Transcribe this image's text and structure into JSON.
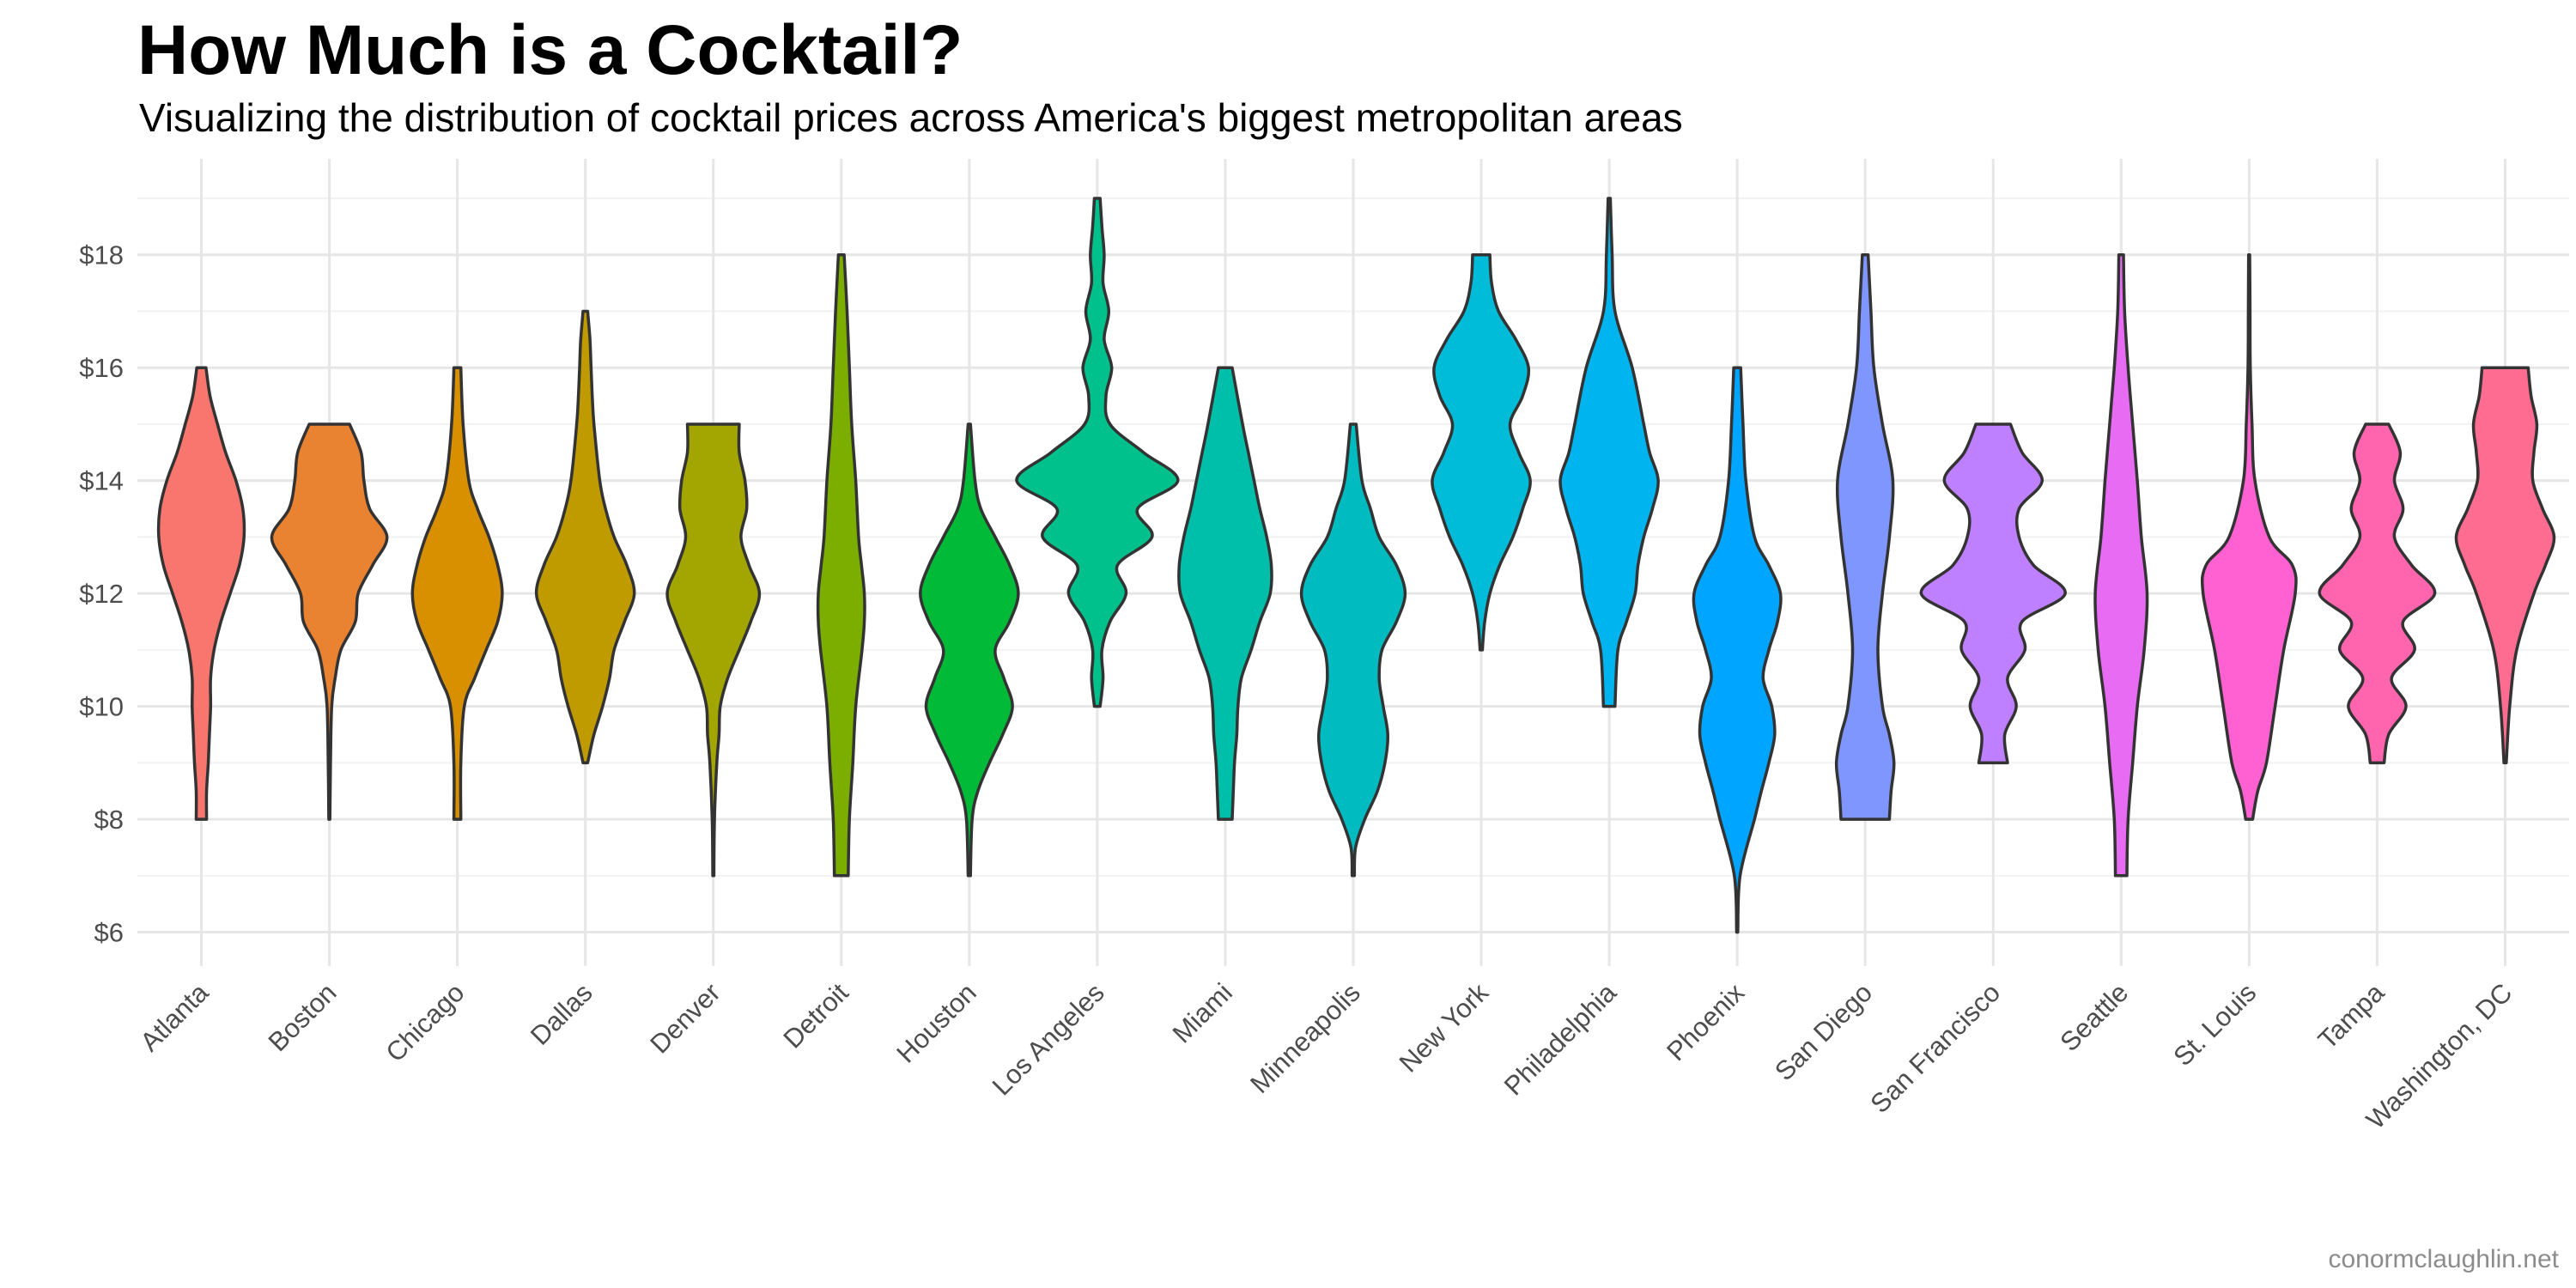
{
  "chart_data": {
    "type": "violin",
    "title": "How Much is a Cocktail?",
    "subtitle": "Visualizing the distribution of cocktail prices across America's biggest metropolitan areas",
    "caption": "conormclaughlin.net",
    "xlabel": "",
    "ylabel": "",
    "ylim": [
      5.4,
      19.7
    ],
    "y_ticks": [
      6,
      8,
      10,
      12,
      14,
      16,
      18
    ],
    "y_tick_labels": [
      "$6",
      "$8",
      "$10",
      "$12",
      "$14",
      "$16",
      "$18"
    ],
    "grid": true,
    "legend": "none",
    "categories": [
      "Atlanta",
      "Boston",
      "Chicago",
      "Dallas",
      "Denver",
      "Detroit",
      "Houston",
      "Los Angeles",
      "Miami",
      "Minneapolis",
      "New York",
      "Philadelphia",
      "Phoenix",
      "San Diego",
      "San Francisco",
      "Seattle",
      "St. Louis",
      "Tampa",
      "Washington, DC"
    ],
    "colors": [
      "#F8766D",
      "#EA8331",
      "#D89000",
      "#C09B00",
      "#A3A500",
      "#7CAE00",
      "#00BA38",
      "#00C08B",
      "#00BFAA",
      "#00BCC1",
      "#00BCD8",
      "#00B4EF",
      "#00A5FF",
      "#7F96FF",
      "#BF80FF",
      "#E76BF3",
      "#FF61D2",
      "#FF65AE",
      "#FF6C91"
    ],
    "series": [
      {
        "name": "Atlanta",
        "min": 8,
        "max": 16,
        "profile": [
          [
            8,
            0.09
          ],
          [
            8.5,
            0.09
          ],
          [
            9,
            0.12
          ],
          [
            9.5,
            0.14
          ],
          [
            10,
            0.16
          ],
          [
            10.5,
            0.16
          ],
          [
            11,
            0.22
          ],
          [
            11.5,
            0.34
          ],
          [
            12,
            0.5
          ],
          [
            12.5,
            0.66
          ],
          [
            13,
            0.74
          ],
          [
            13.5,
            0.72
          ],
          [
            14,
            0.6
          ],
          [
            14.5,
            0.42
          ],
          [
            15,
            0.28
          ],
          [
            15.5,
            0.15
          ],
          [
            16,
            0.08
          ]
        ]
      },
      {
        "name": "Boston",
        "min": 8,
        "max": 15,
        "profile": [
          [
            8,
            0.01
          ],
          [
            9,
            0.02
          ],
          [
            10,
            0.04
          ],
          [
            10.5,
            0.1
          ],
          [
            11,
            0.2
          ],
          [
            11.5,
            0.45
          ],
          [
            12,
            0.5
          ],
          [
            12.5,
            0.75
          ],
          [
            13,
            1.0
          ],
          [
            13.5,
            0.7
          ],
          [
            14,
            0.6
          ],
          [
            14.5,
            0.55
          ],
          [
            15,
            0.35
          ]
        ]
      },
      {
        "name": "Chicago",
        "min": 8,
        "max": 16,
        "profile": [
          [
            8,
            0.06
          ],
          [
            9,
            0.06
          ],
          [
            10,
            0.12
          ],
          [
            10.5,
            0.3
          ],
          [
            11,
            0.5
          ],
          [
            11.5,
            0.7
          ],
          [
            12,
            0.78
          ],
          [
            12.5,
            0.7
          ],
          [
            13,
            0.55
          ],
          [
            13.5,
            0.35
          ],
          [
            14,
            0.2
          ],
          [
            15,
            0.1
          ],
          [
            16,
            0.06
          ]
        ]
      },
      {
        "name": "Dallas",
        "min": 9,
        "max": 17,
        "profile": [
          [
            9,
            0.04
          ],
          [
            9.5,
            0.15
          ],
          [
            10,
            0.3
          ],
          [
            10.5,
            0.42
          ],
          [
            11,
            0.5
          ],
          [
            11.5,
            0.68
          ],
          [
            12,
            0.85
          ],
          [
            12.5,
            0.72
          ],
          [
            13,
            0.5
          ],
          [
            13.5,
            0.35
          ],
          [
            14,
            0.25
          ],
          [
            15,
            0.15
          ],
          [
            15.5,
            0.12
          ],
          [
            16,
            0.1
          ],
          [
            16.5,
            0.08
          ],
          [
            17,
            0.04
          ]
        ]
      },
      {
        "name": "Denver",
        "min": 7,
        "max": 15,
        "profile": [
          [
            7,
            0.01
          ],
          [
            8,
            0.02
          ],
          [
            9,
            0.06
          ],
          [
            9.5,
            0.1
          ],
          [
            10,
            0.12
          ],
          [
            10.5,
            0.25
          ],
          [
            11,
            0.45
          ],
          [
            11.5,
            0.65
          ],
          [
            12,
            0.8
          ],
          [
            12.5,
            0.62
          ],
          [
            13,
            0.48
          ],
          [
            13.5,
            0.58
          ],
          [
            14,
            0.55
          ],
          [
            14.5,
            0.45
          ],
          [
            15,
            0.45
          ]
        ]
      },
      {
        "name": "Detroit",
        "min": 7,
        "max": 18,
        "profile": [
          [
            7,
            0.12
          ],
          [
            8,
            0.14
          ],
          [
            9,
            0.2
          ],
          [
            10,
            0.25
          ],
          [
            11,
            0.36
          ],
          [
            11.5,
            0.4
          ],
          [
            12,
            0.4
          ],
          [
            12.5,
            0.35
          ],
          [
            13,
            0.3
          ],
          [
            14,
            0.25
          ],
          [
            15,
            0.18
          ],
          [
            16,
            0.14
          ],
          [
            17,
            0.1
          ],
          [
            18,
            0.05
          ]
        ]
      },
      {
        "name": "Houston",
        "min": 7,
        "max": 15,
        "profile": [
          [
            7,
            0.02
          ],
          [
            8,
            0.05
          ],
          [
            8.5,
            0.15
          ],
          [
            9,
            0.35
          ],
          [
            9.5,
            0.58
          ],
          [
            10,
            0.75
          ],
          [
            10.5,
            0.6
          ],
          [
            11,
            0.45
          ],
          [
            11.5,
            0.7
          ],
          [
            12,
            0.85
          ],
          [
            12.5,
            0.7
          ],
          [
            13,
            0.45
          ],
          [
            13.5,
            0.2
          ],
          [
            14,
            0.1
          ],
          [
            15,
            0.02
          ]
        ]
      },
      {
        "name": "Los Angeles",
        "min": 10,
        "max": 19,
        "profile": [
          [
            10,
            0.05
          ],
          [
            10.5,
            0.1
          ],
          [
            11,
            0.08
          ],
          [
            11.5,
            0.22
          ],
          [
            12,
            0.5
          ],
          [
            12.5,
            0.35
          ],
          [
            13,
            0.95
          ],
          [
            13.5,
            0.7
          ],
          [
            14,
            1.4
          ],
          [
            14.5,
            0.8
          ],
          [
            15,
            0.22
          ],
          [
            15.5,
            0.15
          ],
          [
            16,
            0.25
          ],
          [
            16.5,
            0.12
          ],
          [
            17,
            0.2
          ],
          [
            17.5,
            0.1
          ],
          [
            18,
            0.12
          ],
          [
            18.5,
            0.08
          ],
          [
            19,
            0.05
          ]
        ]
      },
      {
        "name": "Miami",
        "min": 8,
        "max": 16,
        "profile": [
          [
            8,
            0.12
          ],
          [
            8.5,
            0.14
          ],
          [
            9,
            0.16
          ],
          [
            9.5,
            0.2
          ],
          [
            10,
            0.22
          ],
          [
            10.5,
            0.28
          ],
          [
            11,
            0.45
          ],
          [
            11.5,
            0.6
          ],
          [
            12,
            0.78
          ],
          [
            12.5,
            0.8
          ],
          [
            13,
            0.72
          ],
          [
            13.5,
            0.6
          ],
          [
            14,
            0.5
          ],
          [
            14.5,
            0.4
          ],
          [
            15,
            0.3
          ],
          [
            16,
            0.12
          ]
        ]
      },
      {
        "name": "Minneapolis",
        "min": 7,
        "max": 15,
        "profile": [
          [
            7,
            0.02
          ],
          [
            7.5,
            0.04
          ],
          [
            8,
            0.2
          ],
          [
            8.5,
            0.42
          ],
          [
            9,
            0.55
          ],
          [
            9.5,
            0.6
          ],
          [
            10,
            0.52
          ],
          [
            10.5,
            0.45
          ],
          [
            11,
            0.5
          ],
          [
            11.5,
            0.75
          ],
          [
            12,
            0.9
          ],
          [
            12.5,
            0.75
          ],
          [
            13,
            0.45
          ],
          [
            13.5,
            0.3
          ],
          [
            14,
            0.15
          ],
          [
            15,
            0.05
          ]
        ]
      },
      {
        "name": "New York",
        "min": 11,
        "max": 18,
        "profile": [
          [
            11,
            0.02
          ],
          [
            11.5,
            0.06
          ],
          [
            12,
            0.15
          ],
          [
            12.5,
            0.32
          ],
          [
            13,
            0.55
          ],
          [
            13.5,
            0.72
          ],
          [
            14,
            0.85
          ],
          [
            14.5,
            0.65
          ],
          [
            15,
            0.5
          ],
          [
            15.5,
            0.72
          ],
          [
            16,
            0.82
          ],
          [
            16.5,
            0.6
          ],
          [
            17,
            0.3
          ],
          [
            17.5,
            0.18
          ],
          [
            18,
            0.15
          ]
        ]
      },
      {
        "name": "Philadelphia",
        "min": 10,
        "max": 19,
        "profile": [
          [
            10,
            0.1
          ],
          [
            11,
            0.15
          ],
          [
            11.5,
            0.3
          ],
          [
            12,
            0.45
          ],
          [
            12.5,
            0.5
          ],
          [
            13,
            0.6
          ],
          [
            13.5,
            0.75
          ],
          [
            14,
            0.85
          ],
          [
            14.5,
            0.7
          ],
          [
            15,
            0.6
          ],
          [
            16,
            0.4
          ],
          [
            17,
            0.1
          ],
          [
            18,
            0.05
          ],
          [
            19,
            0.02
          ]
        ]
      },
      {
        "name": "Phoenix",
        "min": 6,
        "max": 16,
        "profile": [
          [
            6,
            0.01
          ],
          [
            7,
            0.05
          ],
          [
            8,
            0.3
          ],
          [
            8.5,
            0.42
          ],
          [
            9,
            0.55
          ],
          [
            9.5,
            0.65
          ],
          [
            10,
            0.6
          ],
          [
            10.5,
            0.45
          ],
          [
            11,
            0.55
          ],
          [
            11.5,
            0.7
          ],
          [
            12,
            0.75
          ],
          [
            12.5,
            0.55
          ],
          [
            13,
            0.3
          ],
          [
            14,
            0.15
          ],
          [
            15,
            0.1
          ],
          [
            16,
            0.06
          ]
        ]
      },
      {
        "name": "San Diego",
        "min": 8,
        "max": 18,
        "profile": [
          [
            8,
            0.42
          ],
          [
            8.5,
            0.45
          ],
          [
            9,
            0.5
          ],
          [
            9.5,
            0.42
          ],
          [
            10,
            0.3
          ],
          [
            11,
            0.22
          ],
          [
            12,
            0.3
          ],
          [
            13,
            0.42
          ],
          [
            14,
            0.48
          ],
          [
            15,
            0.3
          ],
          [
            16,
            0.15
          ],
          [
            17,
            0.1
          ],
          [
            18,
            0.05
          ]
        ]
      },
      {
        "name": "San Francisco",
        "min": 9,
        "max": 15,
        "profile": [
          [
            9,
            0.25
          ],
          [
            9.5,
            0.2
          ],
          [
            10,
            0.4
          ],
          [
            10.5,
            0.25
          ],
          [
            11,
            0.55
          ],
          [
            11.5,
            0.5
          ],
          [
            12,
            1.25
          ],
          [
            12.5,
            0.7
          ],
          [
            13,
            0.45
          ],
          [
            13.5,
            0.45
          ],
          [
            14,
            0.85
          ],
          [
            14.5,
            0.5
          ],
          [
            15,
            0.3
          ]
        ]
      },
      {
        "name": "Seattle",
        "min": 7,
        "max": 18,
        "profile": [
          [
            7,
            0.1
          ],
          [
            8,
            0.12
          ],
          [
            9,
            0.2
          ],
          [
            10,
            0.28
          ],
          [
            11,
            0.4
          ],
          [
            12,
            0.45
          ],
          [
            13,
            0.35
          ],
          [
            14,
            0.28
          ],
          [
            15,
            0.2
          ],
          [
            16,
            0.12
          ],
          [
            17,
            0.06
          ],
          [
            18,
            0.04
          ]
        ]
      },
      {
        "name": "St. Louis",
        "min": 8,
        "max": 18,
        "profile": [
          [
            8,
            0.06
          ],
          [
            8.5,
            0.15
          ],
          [
            9,
            0.3
          ],
          [
            10,
            0.45
          ],
          [
            11,
            0.6
          ],
          [
            12,
            0.8
          ],
          [
            12.5,
            0.75
          ],
          [
            13,
            0.35
          ],
          [
            14,
            0.1
          ],
          [
            15,
            0.05
          ],
          [
            16,
            0.02
          ],
          [
            17,
            0.015
          ],
          [
            18,
            0.01
          ]
        ]
      },
      {
        "name": "Tampa",
        "min": 9,
        "max": 15,
        "profile": [
          [
            9,
            0.12
          ],
          [
            9.5,
            0.2
          ],
          [
            10,
            0.5
          ],
          [
            10.5,
            0.25
          ],
          [
            11,
            0.65
          ],
          [
            11.5,
            0.45
          ],
          [
            12,
            1.0
          ],
          [
            12.5,
            0.6
          ],
          [
            13,
            0.3
          ],
          [
            13.5,
            0.45
          ],
          [
            14,
            0.3
          ],
          [
            14.5,
            0.4
          ],
          [
            15,
            0.2
          ]
        ]
      },
      {
        "name": "Washington, DC",
        "min": 9,
        "max": 16,
        "profile": [
          [
            9,
            0.02
          ],
          [
            10,
            0.08
          ],
          [
            11,
            0.2
          ],
          [
            12,
            0.5
          ],
          [
            12.5,
            0.7
          ],
          [
            13,
            0.85
          ],
          [
            13.5,
            0.65
          ],
          [
            14,
            0.48
          ],
          [
            14.5,
            0.5
          ],
          [
            15,
            0.55
          ],
          [
            15.5,
            0.45
          ],
          [
            16,
            0.4
          ]
        ]
      }
    ]
  }
}
